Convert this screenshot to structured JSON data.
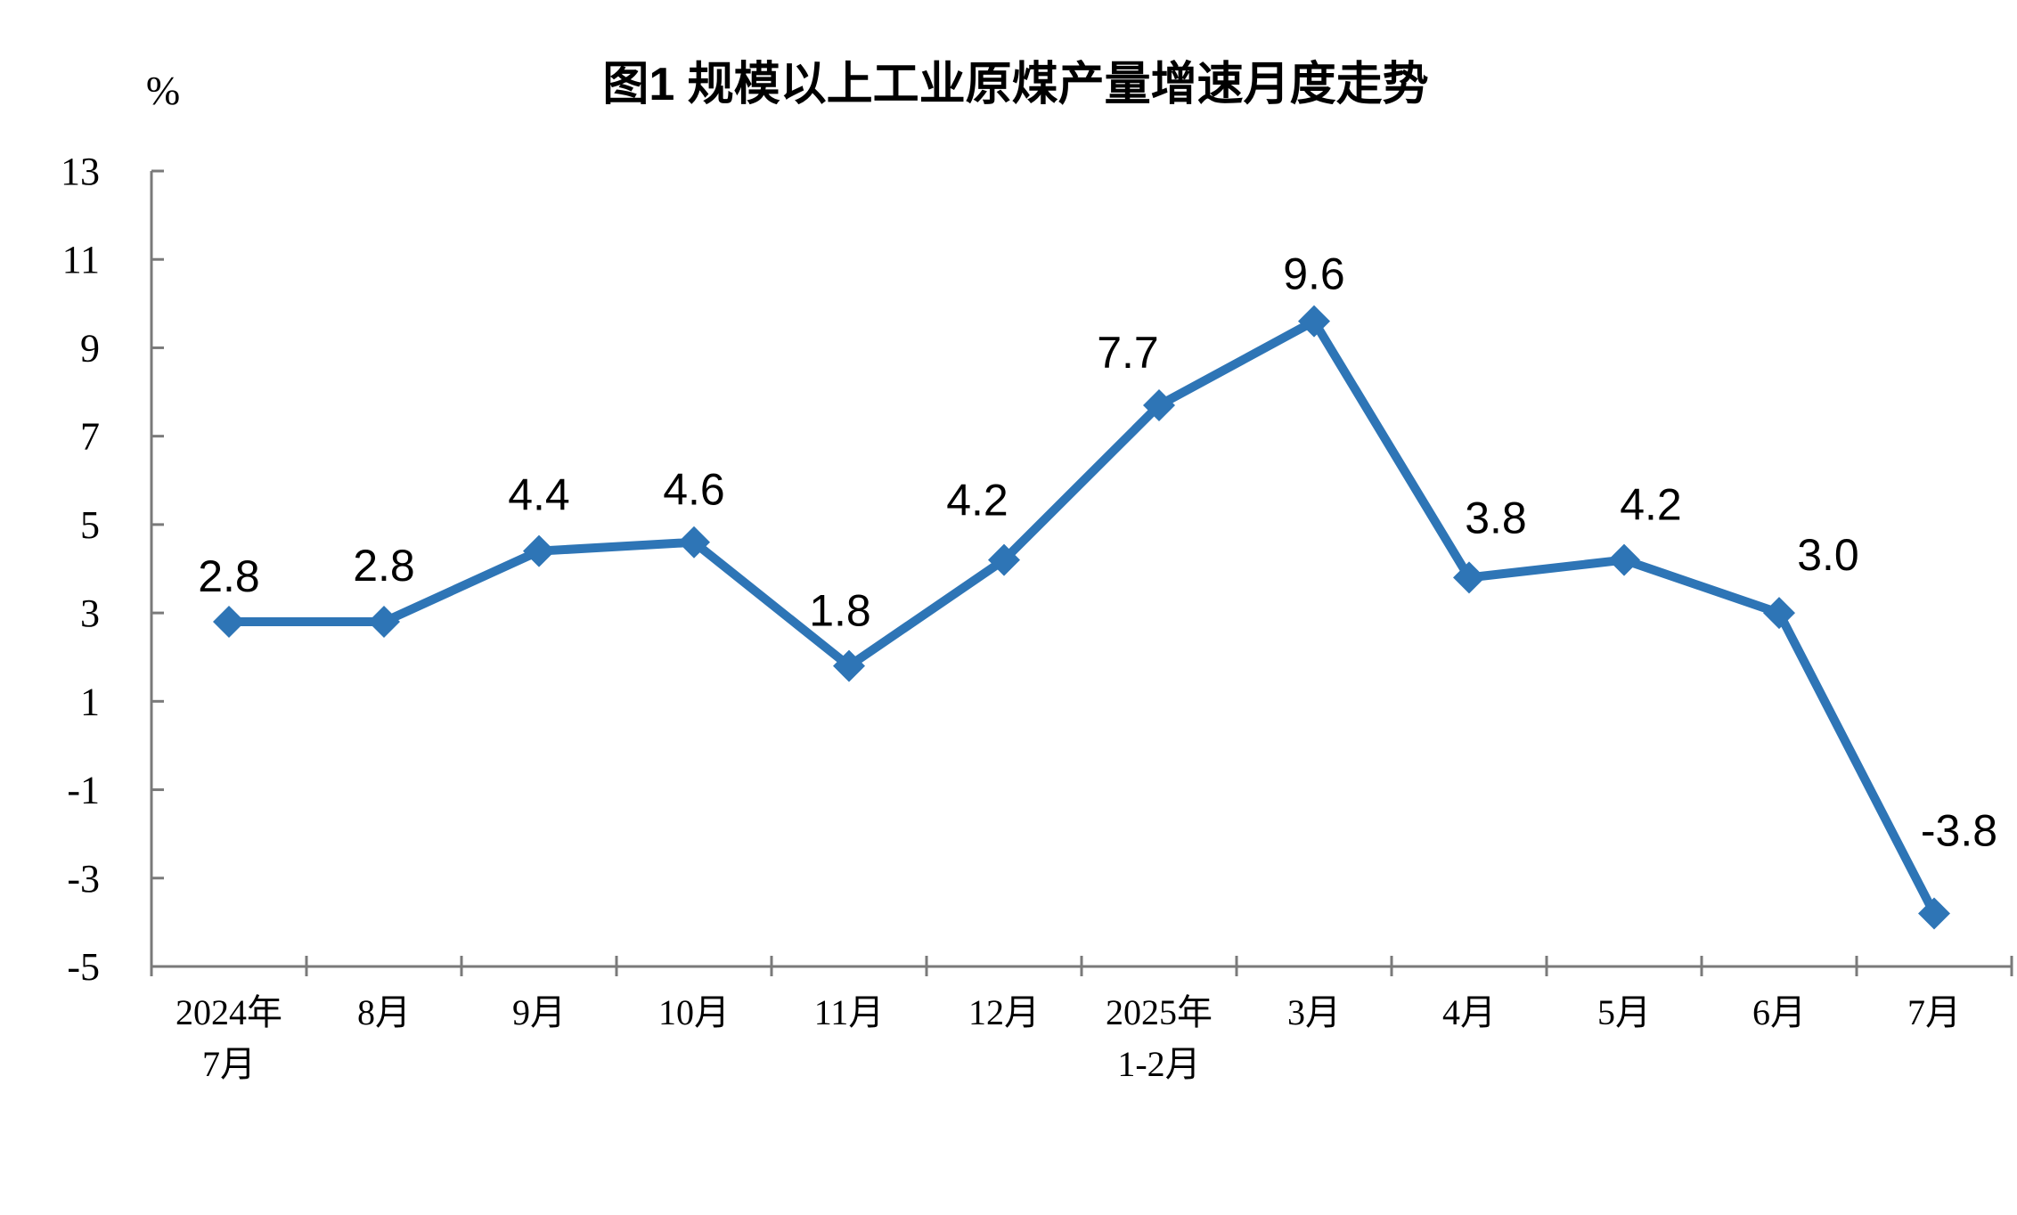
{
  "chart": {
    "title": "图1  规模以上工业原煤产量增速月度走势",
    "unit": "%"
  },
  "chart_data": {
    "type": "line",
    "title": "图1  规模以上工业原煤产量增速月度走势",
    "unit": "%",
    "categories": [
      "2024年7月",
      "8月",
      "9月",
      "10月",
      "11月",
      "12月",
      "2025年1-2月",
      "3月",
      "4月",
      "5月",
      "6月",
      "7月"
    ],
    "category_label_lines": [
      [
        "2024年",
        "7月"
      ],
      [
        "8月"
      ],
      [
        "9月"
      ],
      [
        "10月"
      ],
      [
        "11月"
      ],
      [
        "12月"
      ],
      [
        "2025年",
        "1-2月"
      ],
      [
        "3月"
      ],
      [
        "4月"
      ],
      [
        "5月"
      ],
      [
        "6月"
      ],
      [
        "7月"
      ]
    ],
    "values": [
      2.8,
      2.8,
      4.4,
      4.6,
      1.8,
      4.2,
      7.7,
      9.6,
      3.8,
      4.2,
      3.0,
      -3.8
    ],
    "point_labels": [
      "2.8",
      "2.8",
      "4.4",
      "4.6",
      "1.8",
      "4.2",
      "7.7",
      "9.6",
      "3.8",
      "4.2",
      "3.0",
      "-3.8"
    ],
    "ylim": [
      -5,
      13
    ],
    "yticks": [
      13,
      11,
      9,
      7,
      5,
      3,
      1,
      -1,
      -3,
      -5
    ],
    "ytick_step": 2,
    "grid": false,
    "legend": false,
    "marker": "diamond",
    "line_color": "#2E75B6",
    "marker_color": "#2E75B6",
    "axis_color": "#7A7A7A",
    "text_color": "#000000"
  }
}
